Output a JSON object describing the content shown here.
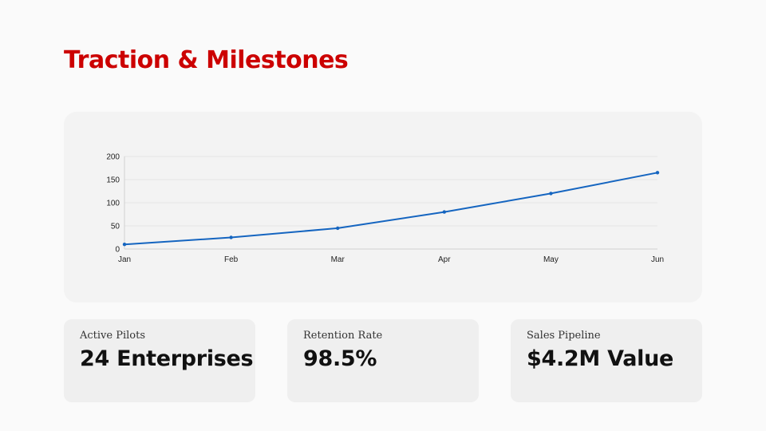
{
  "slide": {
    "title": "Traction & Milestones"
  },
  "colors": {
    "title": "#cc0000",
    "line": "#1565c0",
    "grid": "#e6e6e6",
    "axis": "#d0d0d0"
  },
  "chart_data": {
    "type": "line",
    "title": "",
    "xlabel": "",
    "ylabel": "",
    "categories": [
      "Jan",
      "Feb",
      "Mar",
      "Apr",
      "May",
      "Jun"
    ],
    "series": [
      {
        "name": "",
        "values": [
          10,
          25,
          45,
          80,
          120,
          165
        ]
      }
    ],
    "ylim": [
      0,
      200
    ],
    "yticks": [
      0,
      50,
      100,
      150,
      200
    ],
    "grid": true,
    "legend": "none"
  },
  "metrics": [
    {
      "label": "Active Pilots",
      "value": "24 Enterprises"
    },
    {
      "label": "Retention Rate",
      "value": "98.5%"
    },
    {
      "label": "Sales Pipeline",
      "value": "$4.2M Value"
    }
  ]
}
